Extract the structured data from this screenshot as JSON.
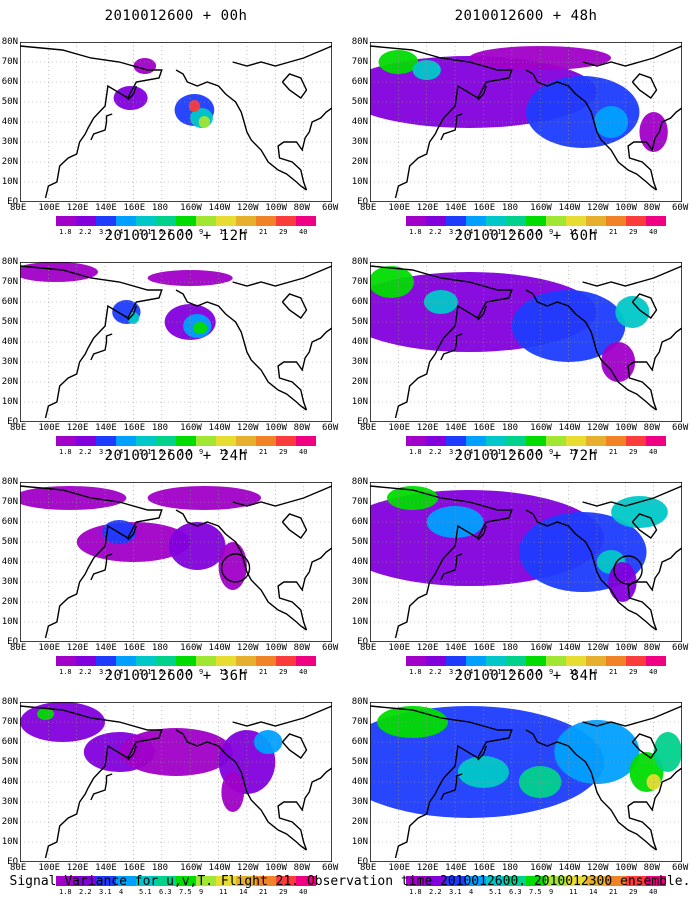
{
  "panels": [
    {
      "title": "2010012600 + 00h",
      "level": 0.15
    },
    {
      "title": "2010012600 + 12h",
      "level": 0.3
    },
    {
      "title": "2010012600 + 24h",
      "level": 0.45
    },
    {
      "title": "2010012600 + 36h",
      "level": 0.55
    },
    {
      "title": "2010012600 + 48h",
      "level": 0.7
    },
    {
      "title": "2010012600 + 60h",
      "level": 0.78
    },
    {
      "title": "2010012600 + 72h",
      "level": 0.85
    },
    {
      "title": "2010012600 + 84h",
      "level": 0.95
    }
  ],
  "lat_labels": [
    "80N",
    "70N",
    "60N",
    "50N",
    "40N",
    "30N",
    "20N",
    "10N",
    "EQ"
  ],
  "lon_labels": [
    "80E",
    "100E",
    "120E",
    "140E",
    "160E",
    "180",
    "160W",
    "140W",
    "120W",
    "100W",
    "80W",
    "60W"
  ],
  "colorbar": {
    "ticks": [
      "1.8",
      "2.2",
      "3.1",
      "4",
      "5.1",
      "6.3",
      "7.5",
      "9",
      "11",
      "14",
      "21",
      "29",
      "40"
    ],
    "colors": [
      "#a000c8",
      "#8200dc",
      "#1e3cff",
      "#00a0ff",
      "#00c8c8",
      "#00d28c",
      "#00dc00",
      "#a0e632",
      "#e6dc32",
      "#e6af2d",
      "#f08228",
      "#fa3c3c",
      "#f00082"
    ]
  },
  "footer": "Signal Variance for u,v,T. Flight 21. Observation time 2010012600. 2010012300 ensemble."
}
